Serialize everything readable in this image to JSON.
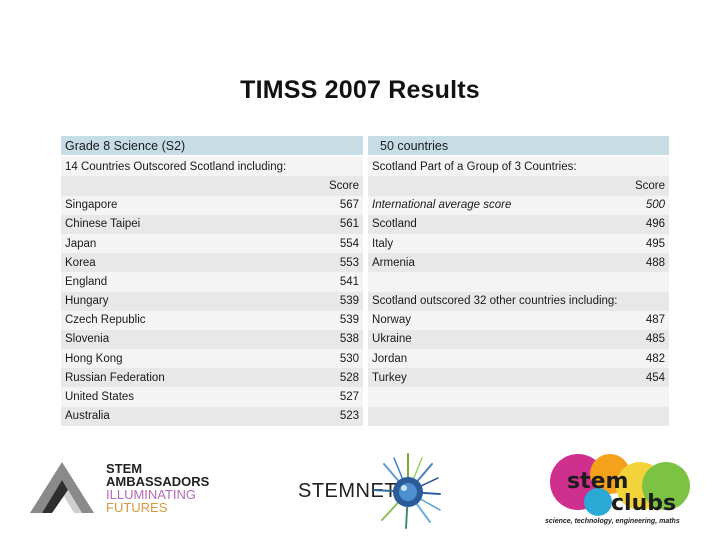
{
  "title": "TIMSS 2007 Results",
  "table": {
    "left_header": "Grade 8 Science (S2)",
    "right_header": "50 countries",
    "left_sub": "14 Countries Outscored Scotland including:",
    "right_sub": "Scotland Part of a Group of 3 Countries:",
    "left_score_label": "Score",
    "right_score_label": "Score",
    "left_rows": [
      {
        "country": "Singapore",
        "score": "567"
      },
      {
        "country": "Chinese Taipei",
        "score": "561"
      },
      {
        "country": "Japan",
        "score": "554"
      },
      {
        "country": "Korea",
        "score": "553"
      },
      {
        "country": "England",
        "score": "541"
      },
      {
        "country": "Hungary",
        "score": "539"
      },
      {
        "country": "Czech Republic",
        "score": "539"
      },
      {
        "country": "Slovenia",
        "score": "538"
      },
      {
        "country": "Hong Kong",
        "score": "530"
      },
      {
        "country": "Russian Federation",
        "score": "528"
      },
      {
        "country": "United States",
        "score": "527"
      },
      {
        "country": "Australia",
        "score": "523"
      }
    ],
    "group_rows": [
      {
        "country": "International average score",
        "score": "500"
      },
      {
        "country": "Scotland",
        "score": "496"
      },
      {
        "country": "Italy",
        "score": "495"
      },
      {
        "country": "Armenia",
        "score": "488"
      }
    ],
    "outscored_heading": "Scotland outscored 32 other countries including:",
    "outscored_rows": [
      {
        "country": "Norway",
        "score": "487"
      },
      {
        "country": "Ukraine",
        "score": "485"
      },
      {
        "country": "Jordan",
        "score": "482"
      },
      {
        "country": "Turkey",
        "score": "454"
      }
    ]
  },
  "logos": {
    "stem_ambassadors": [
      "STEM",
      "AMBASSADORS",
      "ILLUMINATING",
      "FUTURES"
    ],
    "stemnet": "STEMNET",
    "stemclubs_word": [
      "stem",
      "clubs"
    ],
    "stemclubs_tagline": "science, technology, engineering, maths"
  }
}
